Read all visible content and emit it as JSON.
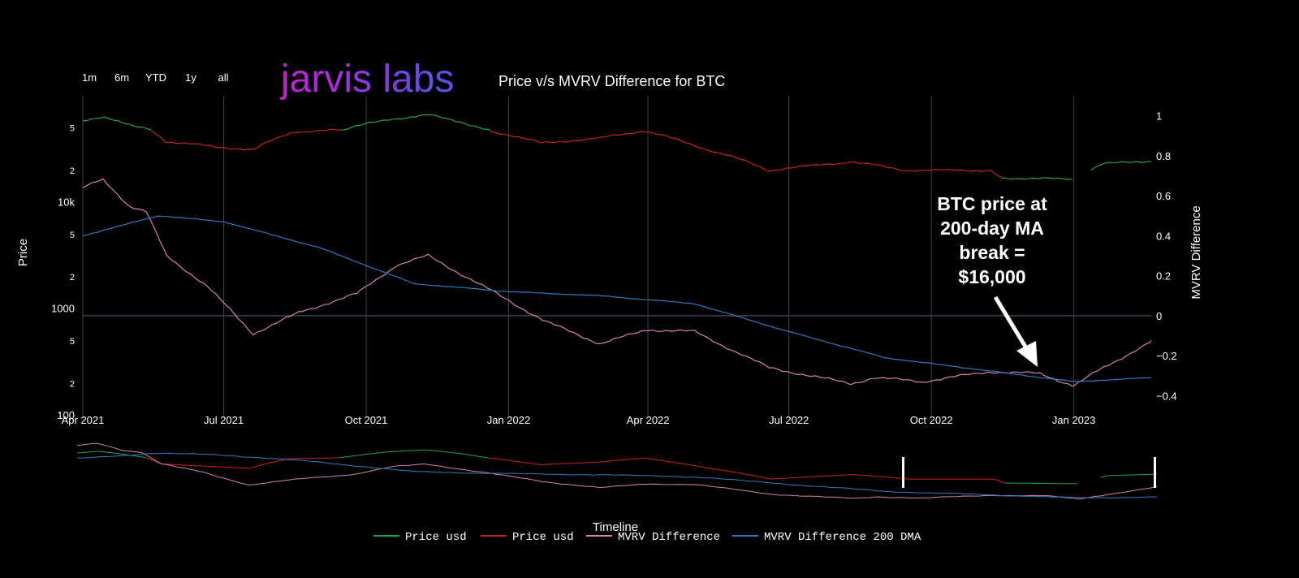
{
  "brand": {
    "logo_text": "jarvis labs",
    "logo_color_start": "#c71fd1",
    "logo_color_end": "#5a4fe8"
  },
  "range_buttons": [
    "1m",
    "6m",
    "YTD",
    "1y",
    "all"
  ],
  "chart_data": {
    "type": "line",
    "title": "Price v/s MVRV Difference for BTC",
    "xlabel": "Timeline",
    "ylabel_left": "Price",
    "ylabel_right": "MVRV Difference",
    "x_ticks": [
      "Apr 2021",
      "Jul 2021",
      "Oct 2021",
      "Jan 2022",
      "Apr 2022",
      "Jul 2022",
      "Oct 2022",
      "Jan 2023"
    ],
    "x_range": [
      "2021-04-01",
      "2023-02-20"
    ],
    "y_left_scale": "log",
    "y_left_range": [
      100,
      100000
    ],
    "y_left_ticks": [
      "100",
      "2",
      "5",
      "1000",
      "2",
      "5",
      "10k",
      "2",
      "5"
    ],
    "y_right_range": [
      -0.5,
      1.1
    ],
    "y_right_ticks": [
      "1",
      "0.8",
      "0.6",
      "0.4",
      "0.2",
      "0",
      "−0.2",
      "−0.4"
    ],
    "grid": true,
    "legend_placement": "bottom-center",
    "series": [
      {
        "name": "Price usd",
        "color": "#1fa35a",
        "axis": "left",
        "points": [
          [
            "2021-04-01",
            58000
          ],
          [
            "2021-04-15",
            62000
          ],
          [
            "2021-04-28",
            56000
          ],
          [
            "2021-05-15",
            48000
          ],
          [
            "2021-08-15",
            47000
          ],
          [
            "2021-09-15",
            47500
          ],
          [
            "2021-10-15",
            60000
          ],
          [
            "2021-11-10",
            66000
          ],
          [
            "2021-12-01",
            57000
          ],
          [
            "2021-12-20",
            47000
          ],
          [
            "2022-11-15",
            17000
          ],
          [
            "2022-12-31",
            16500
          ],
          [
            "2023-01-20",
            23000
          ],
          [
            "2023-02-20",
            24500
          ]
        ],
        "segments_visible": [
          [
            "2021-04-01",
            "2021-05-15"
          ],
          [
            "2021-09-15",
            "2021-12-20"
          ],
          [
            "2022-11-15",
            "2022-12-31"
          ],
          [
            "2023-01-12",
            "2023-02-20"
          ]
        ]
      },
      {
        "name": "Price usd",
        "color": "#cc1f1f",
        "axis": "left",
        "points": [
          [
            "2021-05-15",
            48000
          ],
          [
            "2021-05-25",
            37000
          ],
          [
            "2021-06-20",
            34000
          ],
          [
            "2021-07-20",
            31000
          ],
          [
            "2021-08-15",
            46000
          ],
          [
            "2021-09-15",
            47500
          ],
          [
            "2021-12-20",
            47000
          ],
          [
            "2022-01-22",
            36000
          ],
          [
            "2022-03-01",
            40000
          ],
          [
            "2022-03-29",
            47000
          ],
          [
            "2022-05-10",
            31000
          ],
          [
            "2022-06-18",
            20000
          ],
          [
            "2022-08-10",
            24000
          ],
          [
            "2022-09-15",
            20000
          ],
          [
            "2022-11-08",
            20000
          ],
          [
            "2022-11-15",
            17000
          ],
          [
            "2022-12-31",
            16500
          ],
          [
            "2023-01-12",
            18500
          ]
        ],
        "segments_visible": [
          [
            "2021-05-15",
            "2021-09-15"
          ],
          [
            "2021-12-20",
            "2022-11-15"
          ]
        ]
      },
      {
        "name": "MVRV Difference",
        "color": "#d97fb0",
        "axis": "right",
        "points": [
          [
            "2021-04-01",
            0.64
          ],
          [
            "2021-04-14",
            0.68
          ],
          [
            "2021-05-01",
            0.55
          ],
          [
            "2021-05-12",
            0.52
          ],
          [
            "2021-05-25",
            0.3
          ],
          [
            "2021-06-20",
            0.15
          ],
          [
            "2021-07-20",
            -0.09
          ],
          [
            "2021-08-20",
            0.02
          ],
          [
            "2021-09-25",
            0.11
          ],
          [
            "2021-10-20",
            0.25
          ],
          [
            "2021-11-10",
            0.3
          ],
          [
            "2021-12-15",
            0.15
          ],
          [
            "2022-01-25",
            -0.03
          ],
          [
            "2022-03-01",
            -0.14
          ],
          [
            "2022-04-01",
            -0.07
          ],
          [
            "2022-05-01",
            -0.08
          ],
          [
            "2022-06-18",
            -0.26
          ],
          [
            "2022-08-10",
            -0.34
          ],
          [
            "2022-08-25",
            -0.31
          ],
          [
            "2022-09-25",
            -0.33
          ],
          [
            "2022-11-08",
            -0.28
          ],
          [
            "2022-12-10",
            -0.29
          ],
          [
            "2023-01-01",
            -0.35
          ],
          [
            "2023-01-20",
            -0.26
          ],
          [
            "2023-02-20",
            -0.13
          ]
        ]
      },
      {
        "name": "MVRV Difference 200 DMA",
        "color": "#2b7bbf",
        "axis": "right",
        "points": [
          [
            "2021-04-01",
            0.4
          ],
          [
            "2021-05-20",
            0.5
          ],
          [
            "2021-07-01",
            0.47
          ],
          [
            "2021-09-01",
            0.34
          ],
          [
            "2021-11-01",
            0.16
          ],
          [
            "2022-01-01",
            0.12
          ],
          [
            "2022-03-01",
            0.1
          ],
          [
            "2022-05-01",
            0.06
          ],
          [
            "2022-07-01",
            -0.08
          ],
          [
            "2022-09-01",
            -0.21
          ],
          [
            "2022-11-01",
            -0.27
          ],
          [
            "2023-01-01",
            -0.33
          ],
          [
            "2023-02-20",
            -0.31
          ]
        ]
      }
    ],
    "annotation": {
      "lines": [
        "BTC price  at",
        "200-day MA",
        "break =",
        "$16,000"
      ],
      "color": "#ffffff"
    }
  },
  "legend": [
    {
      "label": "Price usd",
      "color": "#1fa35a"
    },
    {
      "label": "Price usd",
      "color": "#cc1f1f"
    },
    {
      "label": "MVRV Difference",
      "color": "#d97fb0"
    },
    {
      "label": "MVRV Difference 200 DMA",
      "color": "#2b7bbf"
    }
  ],
  "colors": {
    "background": "#000000",
    "grid": "#3a4252",
    "text": "#ffffff"
  }
}
